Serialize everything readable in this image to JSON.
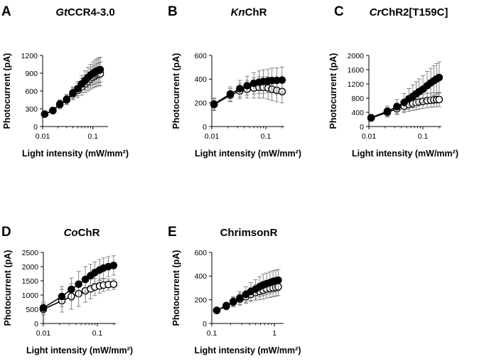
{
  "chart_data": [
    {
      "type": "scatter",
      "letter": "A",
      "title": {
        "italic": "Gt",
        "rest": "CCR4-3.0"
      },
      "xlabel": "Light intensity (mW/mm²)",
      "ylabel": "Photocurrent (pA)",
      "xscale": "log",
      "xlim": [
        0.01,
        0.2
      ],
      "xticks": [
        0.01,
        0.1
      ],
      "xtick_labels": [
        "0.01",
        "0.1"
      ],
      "ylim": [
        0,
        1200
      ],
      "yticks": [
        0,
        300,
        600,
        900,
        1200
      ],
      "ytick_labels": [
        "0",
        "300",
        "600",
        "900",
        "1200"
      ],
      "x": [
        0.011,
        0.016,
        0.022,
        0.03,
        0.04,
        0.05,
        0.06,
        0.07,
        0.08,
        0.09,
        0.1,
        0.11,
        0.12,
        0.13,
        0.14
      ],
      "series": [
        {
          "marker": "filled",
          "values": [
            210,
            270,
            380,
            460,
            570,
            640,
            720,
            780,
            830,
            870,
            900,
            920,
            940,
            950,
            960
          ],
          "errors": [
            40,
            55,
            70,
            80,
            100,
            120,
            140,
            160,
            170,
            180,
            190,
            200,
            200,
            205,
            210
          ]
        },
        {
          "marker": "open",
          "values": [
            210,
            270,
            370,
            450,
            550,
            610,
            670,
            720,
            760,
            800,
            830,
            850,
            870,
            880,
            890
          ],
          "errors": [
            40,
            55,
            70,
            80,
            100,
            120,
            140,
            150,
            160,
            170,
            180,
            185,
            190,
            195,
            200
          ]
        }
      ]
    },
    {
      "type": "scatter",
      "letter": "B",
      "title": {
        "italic": "Kn",
        "rest": "ChR"
      },
      "xlabel": "Light intensity (mW/mm²)",
      "ylabel": "Photocurrent (pA)",
      "xscale": "log",
      "xlim": [
        0.01,
        0.22
      ],
      "xticks": [
        0.01,
        0.1
      ],
      "xtick_labels": [
        "0.01",
        "0.1"
      ],
      "ylim": [
        0,
        600
      ],
      "yticks": [
        0,
        200,
        400,
        600
      ],
      "ytick_labels": [
        "0",
        "200",
        "400",
        "600"
      ],
      "x": [
        0.011,
        0.022,
        0.033,
        0.045,
        0.06,
        0.075,
        0.09,
        0.11,
        0.13,
        0.16,
        0.2
      ],
      "series": [
        {
          "marker": "filled",
          "values": [
            190,
            275,
            320,
            345,
            365,
            375,
            380,
            385,
            388,
            390,
            392
          ],
          "errors": [
            50,
            60,
            70,
            80,
            90,
            95,
            100,
            100,
            105,
            105,
            110
          ]
        },
        {
          "marker": "open",
          "values": [
            185,
            265,
            300,
            315,
            325,
            330,
            330,
            325,
            315,
            305,
            295
          ],
          "errors": [
            50,
            55,
            65,
            75,
            85,
            90,
            90,
            95,
            95,
            95,
            95
          ]
        }
      ]
    },
    {
      "type": "scatter",
      "letter": "C",
      "title": {
        "italic": "Cr",
        "rest": "ChR2[T159C]"
      },
      "xlabel": "Light intensity (mW/mm²)",
      "ylabel": "Photocurrent (pA)",
      "xscale": "log",
      "xlim": [
        0.01,
        0.22
      ],
      "xticks": [
        0.01,
        0.1
      ],
      "xtick_labels": [
        "0.01",
        "0.1"
      ],
      "ylim": [
        0,
        2000
      ],
      "yticks": [
        0,
        400,
        800,
        1200,
        1600,
        2000
      ],
      "ytick_labels": [
        "0",
        "400",
        "800",
        "1200",
        "1600",
        "2000"
      ],
      "x": [
        0.011,
        0.022,
        0.033,
        0.045,
        0.055,
        0.065,
        0.075,
        0.085,
        0.1,
        0.12,
        0.14,
        0.16,
        0.18,
        0.2
      ],
      "series": [
        {
          "marker": "filled",
          "values": [
            250,
            430,
            560,
            680,
            780,
            850,
            920,
            980,
            1050,
            1150,
            1230,
            1290,
            1340,
            1380
          ],
          "errors": [
            80,
            150,
            200,
            250,
            290,
            320,
            340,
            360,
            380,
            400,
            410,
            420,
            430,
            440
          ]
        },
        {
          "marker": "open",
          "values": [
            240,
            400,
            500,
            570,
            620,
            650,
            670,
            690,
            710,
            730,
            740,
            750,
            755,
            760
          ],
          "errors": [
            70,
            130,
            160,
            180,
            190,
            200,
            200,
            200,
            200,
            200,
            200,
            200,
            200,
            200
          ]
        }
      ]
    },
    {
      "type": "scatter",
      "letter": "D",
      "title": {
        "italic": "Co",
        "rest": "ChR"
      },
      "xlabel": "Light intensity (mW/mm²)",
      "ylabel": "Photocurrent (pA)",
      "xscale": "log",
      "xlim": [
        0.01,
        0.22
      ],
      "xticks": [
        0.01,
        0.1
      ],
      "xtick_labels": [
        "0.01",
        "0.1"
      ],
      "ylim": [
        0,
        2500
      ],
      "yticks": [
        0,
        500,
        1000,
        1500,
        2000,
        2500
      ],
      "ytick_labels": [
        "0",
        "500",
        "1000",
        "1500",
        "2000",
        "2500"
      ],
      "x": [
        0.01,
        0.022,
        0.033,
        0.045,
        0.06,
        0.075,
        0.09,
        0.11,
        0.13,
        0.16,
        0.2
      ],
      "series": [
        {
          "marker": "filled",
          "values": [
            550,
            950,
            1200,
            1380,
            1550,
            1680,
            1790,
            1880,
            1950,
            2000,
            2040
          ],
          "errors": [
            200,
            350,
            400,
            450,
            450,
            400,
            380,
            370,
            360,
            350,
            340
          ]
        },
        {
          "marker": "open",
          "values": [
            500,
            800,
            950,
            1050,
            1150,
            1220,
            1280,
            1320,
            1350,
            1370,
            1380
          ],
          "errors": [
            200,
            400,
            450,
            450,
            400,
            350,
            300,
            250,
            220,
            200,
            180
          ]
        }
      ]
    },
    {
      "type": "scatter",
      "letter": "E",
      "title": {
        "italic": "",
        "rest": "ChrimsonR"
      },
      "xlabel": "Light intensity (mW/mm²)",
      "ylabel": "Photocurrent (pA)",
      "xscale": "log",
      "xlim": [
        0.1,
        1.4
      ],
      "xticks": [
        0.1,
        1
      ],
      "xtick_labels": [
        "0.1",
        "1"
      ],
      "ylim": [
        0,
        600
      ],
      "yticks": [
        0,
        200,
        400,
        600
      ],
      "ytick_labels": [
        "0",
        "200",
        "400",
        "600"
      ],
      "x": [
        0.12,
        0.17,
        0.22,
        0.28,
        0.35,
        0.42,
        0.5,
        0.58,
        0.66,
        0.75,
        0.85,
        0.95,
        1.05,
        1.15
      ],
      "series": [
        {
          "marker": "filled",
          "values": [
            110,
            150,
            185,
            215,
            245,
            270,
            290,
            310,
            325,
            335,
            345,
            355,
            360,
            365
          ],
          "errors": [
            20,
            30,
            40,
            55,
            65,
            75,
            80,
            85,
            90,
            90,
            90,
            90,
            90,
            90
          ]
        },
        {
          "marker": "open",
          "values": [
            110,
            145,
            180,
            205,
            225,
            245,
            260,
            270,
            280,
            290,
            295,
            300,
            305,
            310
          ],
          "errors": [
            20,
            30,
            40,
            50,
            55,
            60,
            65,
            70,
            75,
            75,
            75,
            75,
            75,
            75
          ]
        }
      ]
    }
  ]
}
